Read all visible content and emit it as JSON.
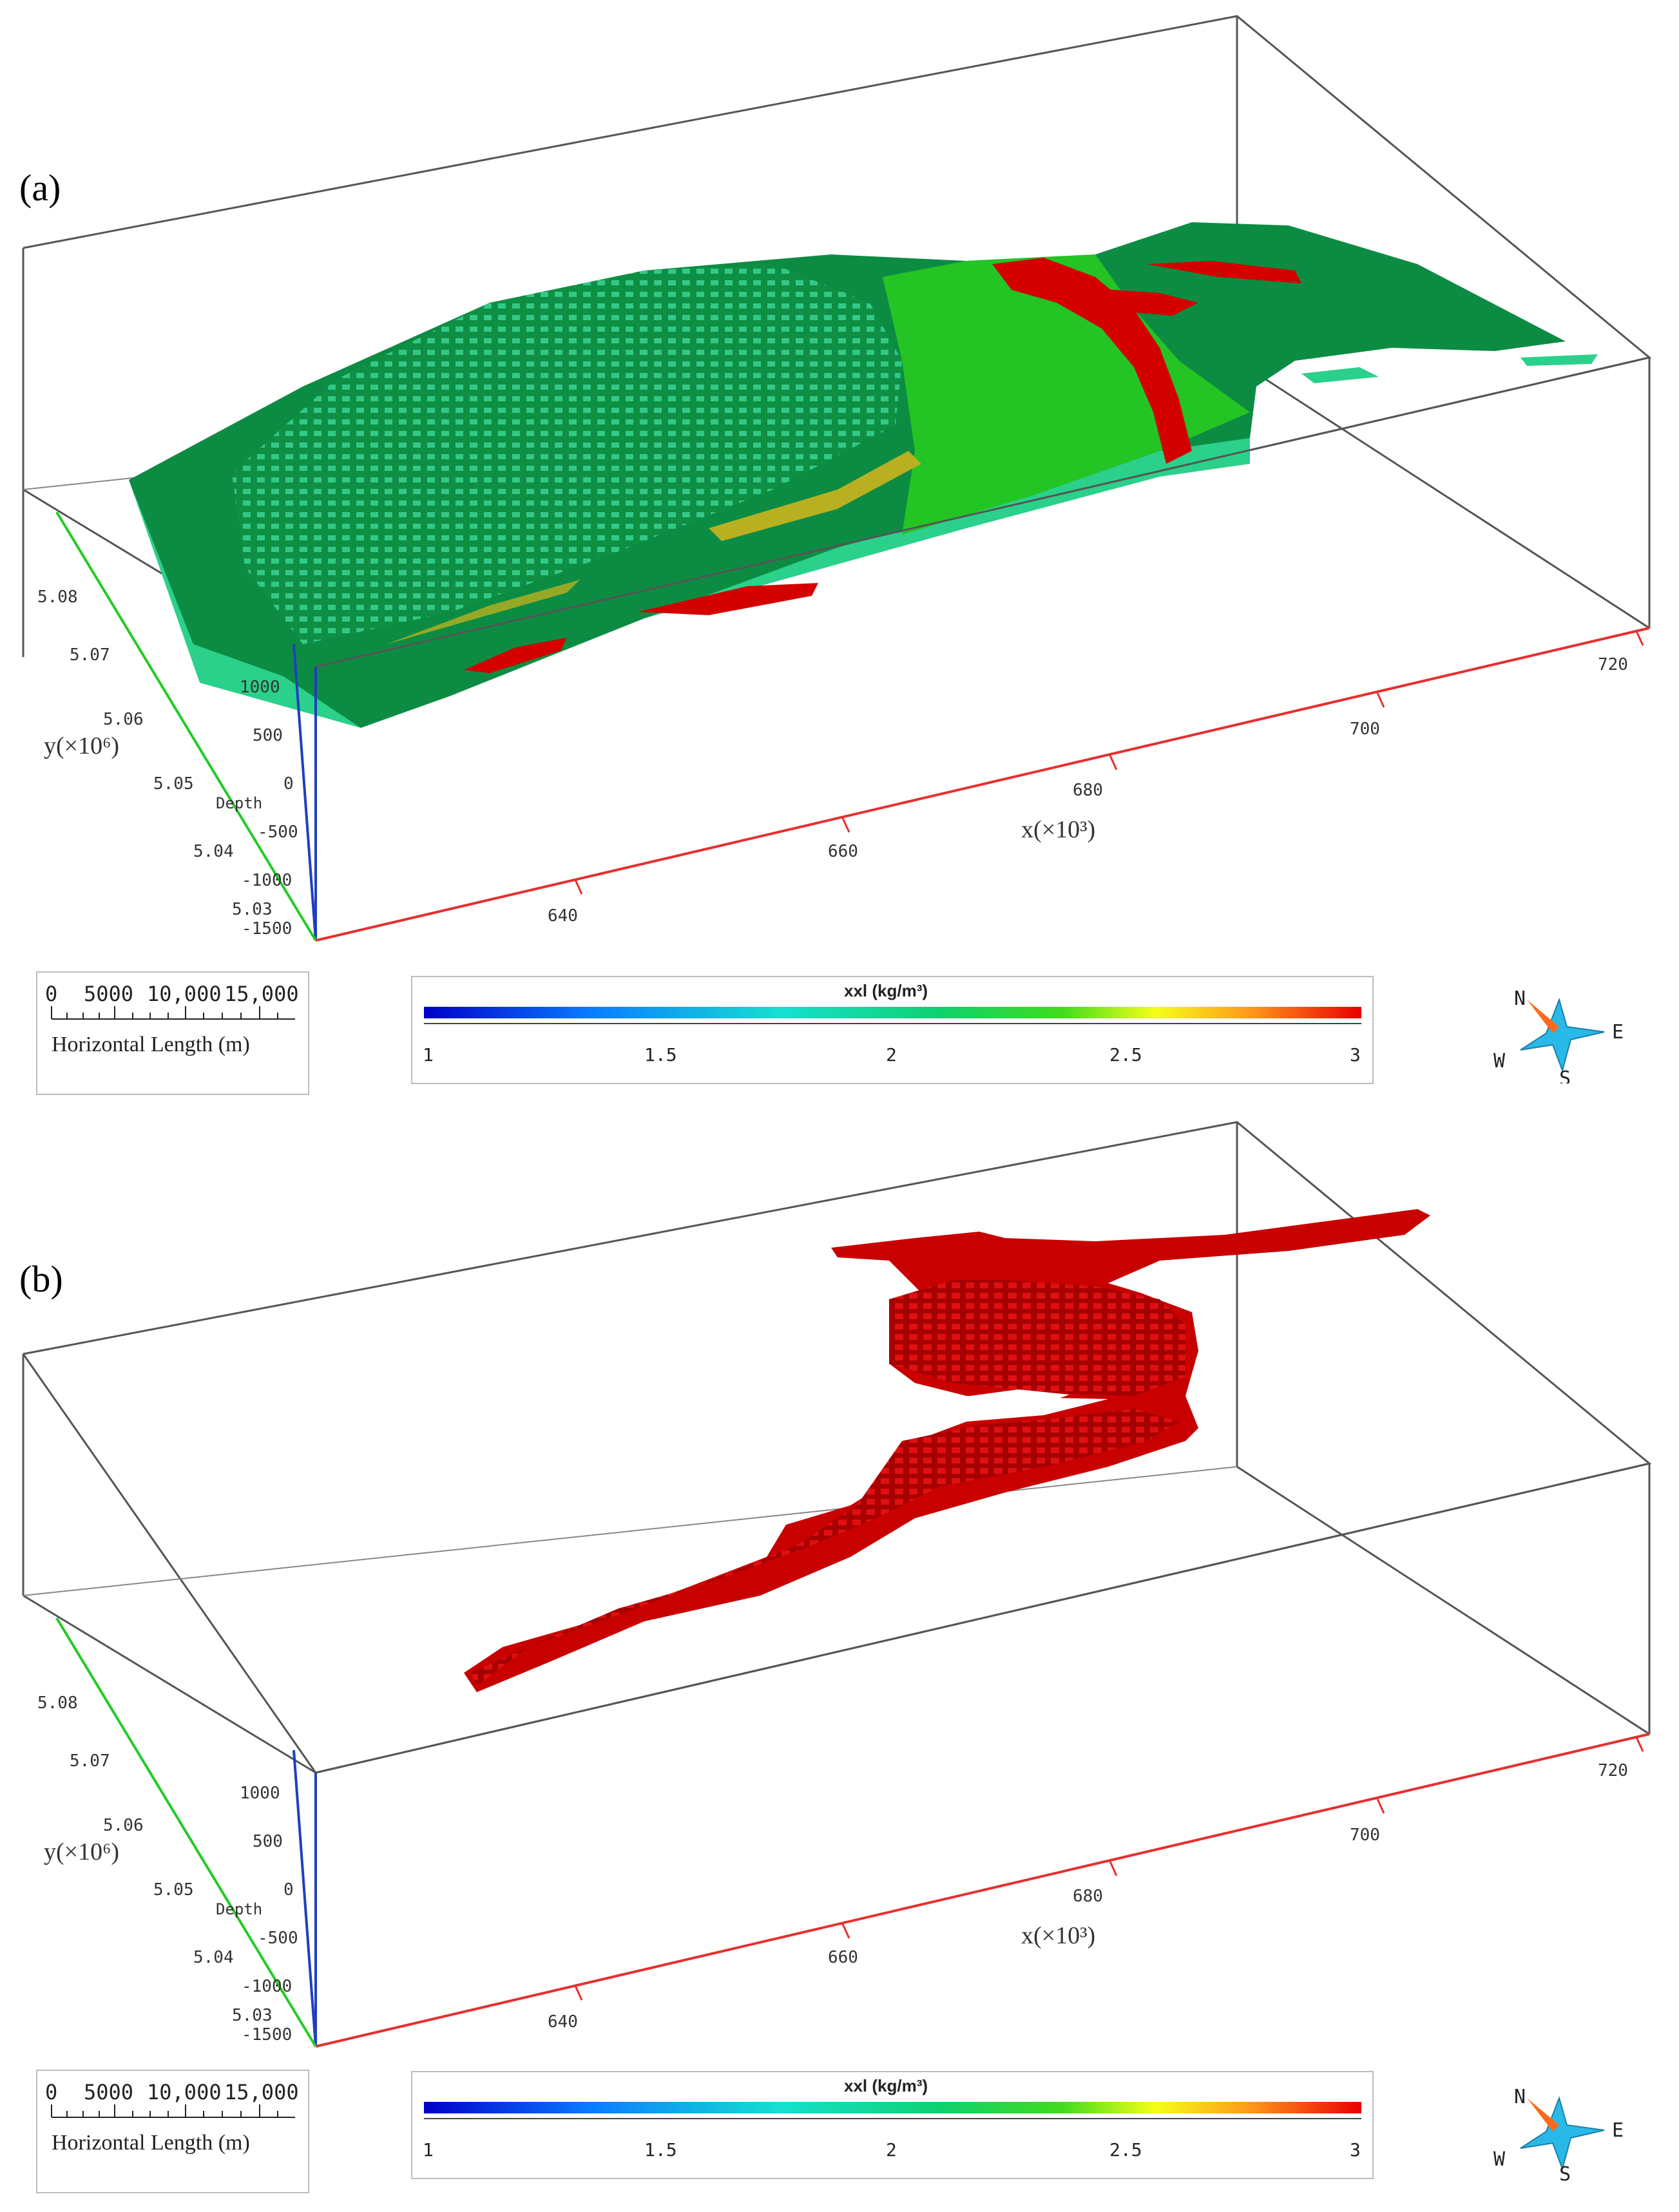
{
  "panels": [
    {
      "label": "(a)",
      "axes": {
        "x_label": "x(×10³)",
        "x_ticks": [
          "640",
          "660",
          "680",
          "700",
          "720"
        ],
        "y_label": "y(×10⁶)",
        "y_ticks": [
          "5.08",
          "5.07",
          "5.06",
          "5.05",
          "5.04",
          "5.03"
        ],
        "z_label": "Depth",
        "z_ticks": [
          "1000",
          "500",
          "0",
          "-500",
          "-1000",
          "-1500"
        ]
      },
      "scalebar": {
        "ticks": [
          "0",
          "5000",
          "10,000",
          "15,000"
        ],
        "label": "Horizontal Length (m)"
      },
      "colorbar": {
        "title": "xxl (kg/m³)",
        "ticks": [
          "1",
          "1.5",
          "2",
          "2.5",
          "3"
        ],
        "range": [
          1,
          3
        ]
      },
      "compass": {
        "n": "N",
        "e": "E",
        "w": "W",
        "s": "S"
      }
    },
    {
      "label": "(b)",
      "axes": {
        "x_label": "x(×10³)",
        "x_ticks": [
          "640",
          "660",
          "680",
          "700",
          "720"
        ],
        "y_label": "y(×10⁶)",
        "y_ticks": [
          "5.08",
          "5.07",
          "5.06",
          "5.05",
          "5.04",
          "5.03"
        ],
        "z_label": "Depth",
        "z_ticks": [
          "1000",
          "500",
          "0",
          "-500",
          "-1000",
          "-1500"
        ]
      },
      "scalebar": {
        "ticks": [
          "0",
          "5000",
          "10,000",
          "15,000"
        ],
        "label": "Horizontal Length (m)"
      },
      "colorbar": {
        "title": "xxl (kg/m³)",
        "ticks": [
          "1",
          "1.5",
          "2",
          "2.5",
          "3"
        ],
        "range": [
          1,
          3
        ]
      },
      "compass": {
        "n": "N",
        "e": "E",
        "w": "W",
        "s": "S"
      }
    }
  ],
  "colors": {
    "box_edge": "#555555",
    "x_axis": "#e53030",
    "y_axis": "#22cc22",
    "z_axis": "#1f3fbf",
    "body_dark_green": "#0a8a3e",
    "body_light_green": "#2fd18a",
    "body_bright_green": "#22c222",
    "body_red": "#d40000",
    "body_red_dark": "#a80000",
    "body_yellow": "#b8b020"
  }
}
